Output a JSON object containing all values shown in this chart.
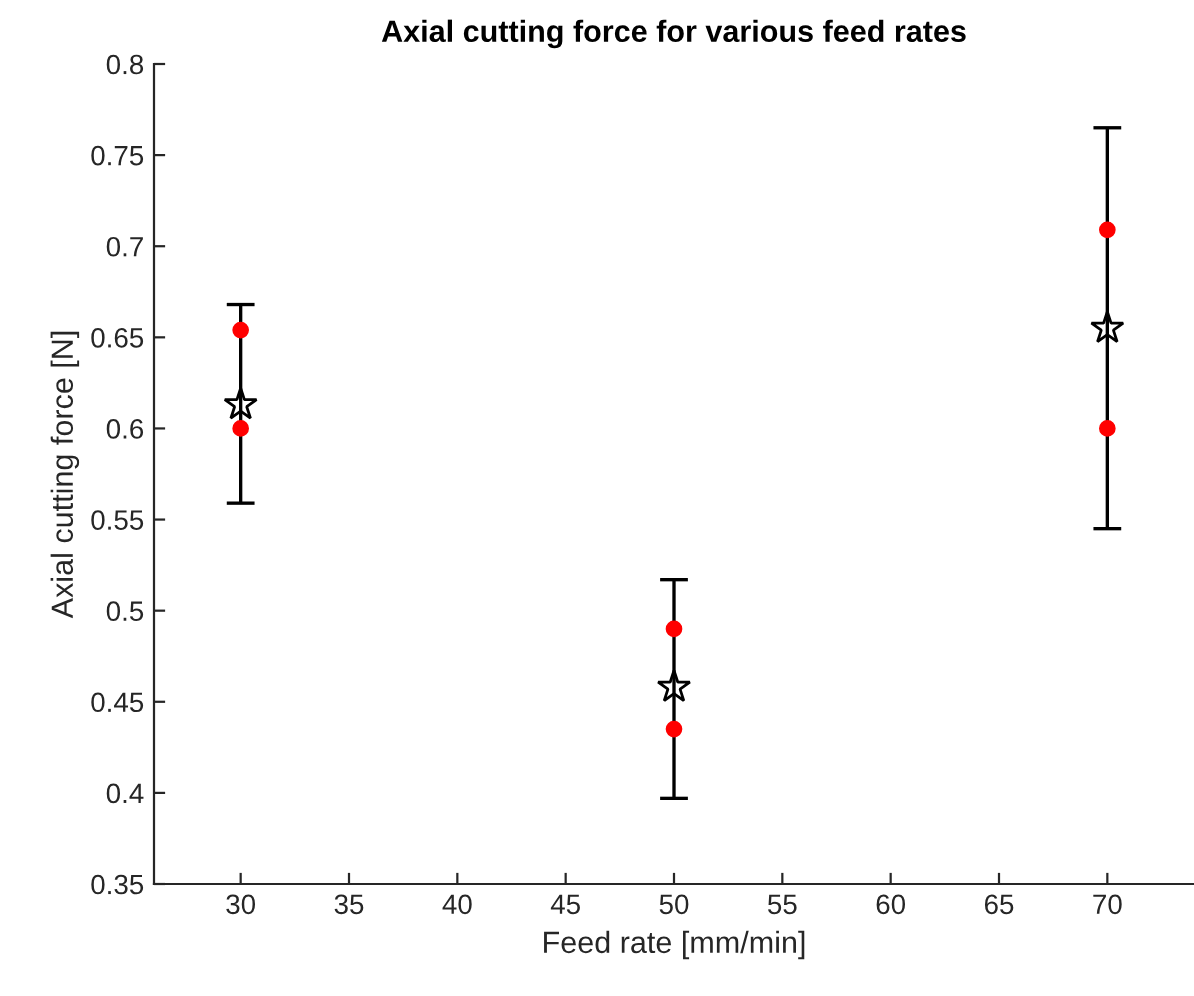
{
  "chart_data": {
    "type": "scatter",
    "title": "Axial cutting force for various feed rates",
    "xlabel": "Feed rate [mm/min]",
    "ylabel": "Axial cutting force [N]",
    "xlim": [
      26,
      74
    ],
    "xticks": [
      30,
      35,
      40,
      45,
      50,
      55,
      60,
      65,
      70
    ],
    "ylim": [
      0.35,
      0.8
    ],
    "yticks": [
      0.35,
      0.4,
      0.45,
      0.5,
      0.55,
      0.6,
      0.65,
      0.7,
      0.75,
      0.8
    ],
    "grid": false,
    "legend": false,
    "series": [
      {
        "color": "#ff0000",
        "marker": "circle",
        "x": [
          30,
          30,
          50,
          50,
          70,
          70
        ],
        "values": [
          0.654,
          0.6,
          0.49,
          0.435,
          0.709,
          0.6
        ]
      },
      {
        "color": "#000000",
        "marker": "star",
        "x": [
          30,
          50,
          70
        ],
        "values": [
          0.613,
          0.458,
          0.655
        ],
        "errors": [
          [
            0.559,
            0.668
          ],
          [
            0.397,
            0.517
          ],
          [
            0.545,
            0.765
          ]
        ]
      }
    ]
  }
}
